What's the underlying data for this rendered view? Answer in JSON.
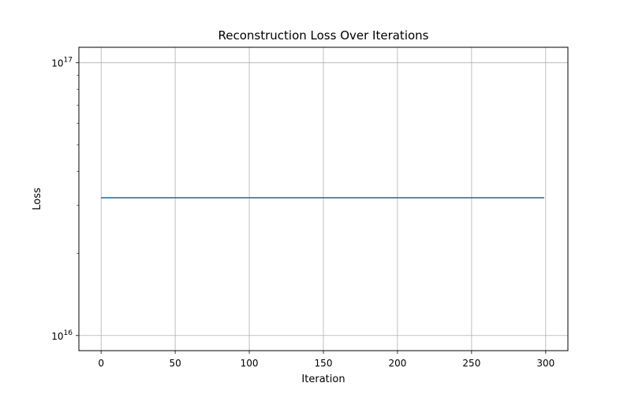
{
  "chart_data": {
    "type": "line",
    "title": "Reconstruction Loss Over Iterations",
    "xlabel": "Iteration",
    "ylabel": "Loss",
    "xlim": [
      -15,
      315
    ],
    "ylim": [
      8800000000000000.0,
      1.14e+17
    ],
    "yscale": "log",
    "grid": true,
    "x_ticks": [
      0,
      50,
      100,
      150,
      200,
      250,
      300
    ],
    "y_major_ticks": [
      {
        "value": 1e+16,
        "base": "10",
        "exp": "16"
      },
      {
        "value": 1e+17,
        "base": "10",
        "exp": "17"
      }
    ],
    "y_minor_ticks": [
      2e+16,
      3e+16,
      4e+16,
      5e+16,
      6e+16,
      7e+16,
      8e+16,
      9e+16
    ],
    "series": [
      {
        "color": "#1f77b4",
        "x": [
          0,
          299
        ],
        "y": [
          3.2e+16,
          3.2e+16
        ]
      }
    ]
  }
}
